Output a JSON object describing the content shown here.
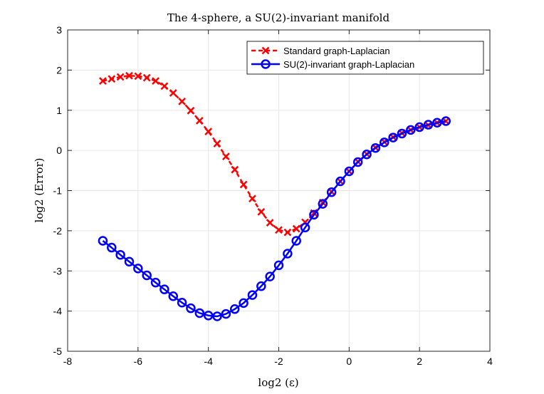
{
  "chart_data": {
    "type": "line",
    "title": "The 4-sphere, a SU(2)-invariant manifold",
    "xlabel": "log2 (ε)",
    "ylabel": "log2 (Error)",
    "xlim": [
      -8,
      4
    ],
    "ylim": [
      -5,
      3
    ],
    "x_ticks": [
      -8,
      -6,
      -4,
      -2,
      0,
      2,
      4
    ],
    "y_ticks": [
      -5,
      -4,
      -3,
      -2,
      -1,
      0,
      1,
      2,
      3
    ],
    "grid": true,
    "legend_position": "top-right",
    "series": [
      {
        "name": "Standard graph-Laplacian",
        "color": "#ff0000",
        "line_style": "dashed",
        "marker": "x",
        "x": [
          -7.0,
          -6.75,
          -6.5,
          -6.25,
          -6.0,
          -5.75,
          -5.5,
          -5.25,
          -5.0,
          -4.75,
          -4.5,
          -4.25,
          -4.0,
          -3.75,
          -3.5,
          -3.25,
          -3.0,
          -2.75,
          -2.5,
          -2.25,
          -2.0,
          -1.75,
          -1.5,
          -1.25,
          -1.0,
          -0.75,
          -0.5,
          -0.25,
          0.0,
          0.25,
          0.5,
          0.75,
          1.0,
          1.25,
          1.5,
          1.75,
          2.0,
          2.25,
          2.5,
          2.75
        ],
        "y": [
          1.73,
          1.78,
          1.83,
          1.86,
          1.85,
          1.81,
          1.73,
          1.6,
          1.43,
          1.22,
          0.99,
          0.74,
          0.47,
          0.17,
          -0.15,
          -0.48,
          -0.85,
          -1.2,
          -1.53,
          -1.8,
          -1.98,
          -2.04,
          -1.95,
          -1.79,
          -1.56,
          -1.3,
          -1.03,
          -0.77,
          -0.52,
          -0.28,
          -0.09,
          0.07,
          0.21,
          0.33,
          0.43,
          0.51,
          0.58,
          0.63,
          0.69,
          0.73
        ]
      },
      {
        "name": "SU(2)-invariant graph-Laplacian",
        "color": "#0000ff",
        "line_style": "solid",
        "marker": "o",
        "x": [
          -7.0,
          -6.75,
          -6.5,
          -6.25,
          -6.0,
          -5.75,
          -5.5,
          -5.25,
          -5.0,
          -4.75,
          -4.5,
          -4.25,
          -4.0,
          -3.75,
          -3.5,
          -3.25,
          -3.0,
          -2.75,
          -2.5,
          -2.25,
          -2.0,
          -1.75,
          -1.5,
          -1.25,
          -1.0,
          -0.75,
          -0.5,
          -0.25,
          0.0,
          0.25,
          0.5,
          0.75,
          1.0,
          1.25,
          1.5,
          1.75,
          2.0,
          2.25,
          2.5,
          2.75
        ],
        "y": [
          -2.25,
          -2.42,
          -2.6,
          -2.77,
          -2.94,
          -3.11,
          -3.29,
          -3.46,
          -3.63,
          -3.79,
          -3.93,
          -4.05,
          -4.11,
          -4.13,
          -4.07,
          -3.95,
          -3.8,
          -3.6,
          -3.38,
          -3.14,
          -2.86,
          -2.57,
          -2.25,
          -1.92,
          -1.6,
          -1.33,
          -1.04,
          -0.77,
          -0.52,
          -0.29,
          -0.1,
          0.06,
          0.2,
          0.32,
          0.42,
          0.51,
          0.58,
          0.64,
          0.69,
          0.73
        ]
      }
    ]
  }
}
